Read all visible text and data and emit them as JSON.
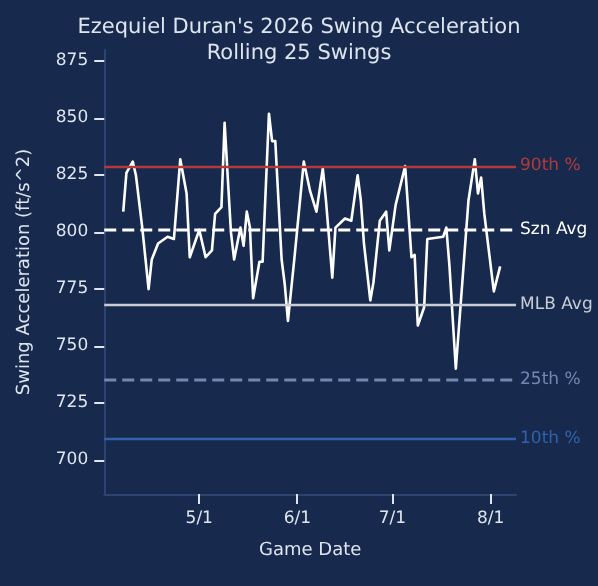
{
  "chart_data": {
    "type": "line",
    "title": "Ezequiel Duran's 2026 Swing Acceleration",
    "subtitle": "Rolling 25 Swings",
    "xlabel": "Game Date",
    "ylabel": "Swing Acceleration (ft/s^2)",
    "x": [
      "2026-04-07",
      "2026-04-08",
      "2026-04-10",
      "2026-04-11",
      "2026-04-13",
      "2026-04-15",
      "2026-04-16",
      "2026-04-18",
      "2026-04-21",
      "2026-04-23",
      "2026-04-25",
      "2026-04-27",
      "2026-04-28",
      "2026-04-30",
      "2026-05-01",
      "2026-05-03",
      "2026-05-05",
      "2026-05-06",
      "2026-05-08",
      "2026-05-09",
      "2026-05-11",
      "2026-05-12",
      "2026-05-14",
      "2026-05-15",
      "2026-05-16",
      "2026-05-17",
      "2026-05-18",
      "2026-05-20",
      "2026-05-21",
      "2026-05-23",
      "2026-05-24",
      "2026-05-25",
      "2026-05-27",
      "2026-05-28",
      "2026-05-29",
      "2026-05-31",
      "2026-06-03",
      "2026-06-05",
      "2026-06-07",
      "2026-06-09",
      "2026-06-10",
      "2026-06-12",
      "2026-06-13",
      "2026-06-16",
      "2026-06-18",
      "2026-06-20",
      "2026-06-21",
      "2026-06-22",
      "2026-06-24",
      "2026-06-25",
      "2026-06-27",
      "2026-06-29",
      "2026-06-30",
      "2026-07-02",
      "2026-07-05",
      "2026-07-07",
      "2026-07-08",
      "2026-07-09",
      "2026-07-11",
      "2026-07-12",
      "2026-07-17",
      "2026-07-18",
      "2026-07-19",
      "2026-07-21",
      "2026-07-23",
      "2026-07-25",
      "2026-07-27",
      "2026-07-28",
      "2026-07-29",
      "2026-07-30",
      "2026-08-02",
      "2026-08-04"
    ],
    "series": [
      {
        "color": "#ffffff",
        "values": [
          809,
          826,
          831,
          825,
          802,
          775,
          788,
          795,
          798,
          797,
          832,
          817,
          789,
          797,
          801,
          789,
          792,
          808,
          811,
          848,
          800,
          788,
          802,
          794,
          809,
          802,
          771,
          787,
          787,
          852,
          840,
          840,
          788,
          777,
          761,
          788,
          831,
          818,
          809,
          828,
          814,
          780,
          802,
          806,
          805,
          825,
          814,
          795,
          770,
          778,
          805,
          809,
          792,
          812,
          829,
          789,
          790,
          759,
          767,
          797,
          798,
          802,
          785,
          740,
          777,
          814,
          832,
          817,
          824,
          808,
          774,
          785
        ]
      }
    ],
    "xlim": [
      "2026-04-01",
      "2026-08-09"
    ],
    "xticks": [
      {
        "value": "2026-05-01",
        "label": "5/1"
      },
      {
        "value": "2026-06-01",
        "label": "6/1"
      },
      {
        "value": "2026-07-01",
        "label": "7/1"
      },
      {
        "value": "2026-08-01",
        "label": "8/1"
      }
    ],
    "ylim": [
      685,
      880
    ],
    "yticks": [
      700,
      725,
      750,
      775,
      800,
      825,
      850,
      875
    ],
    "ref_lines": [
      {
        "axis": "y",
        "value": 829,
        "label": "90th %",
        "color": "#b23a3a",
        "line_style": "solid"
      },
      {
        "axis": "y",
        "value": 801,
        "label": "Szn Avg",
        "color": "#ffffff",
        "line_style": "dashed"
      },
      {
        "axis": "y",
        "value": 768,
        "label": "MLB Avg",
        "color": "#c8ccd4",
        "line_style": "solid"
      },
      {
        "axis": "y",
        "value": 735,
        "label": "25th %",
        "color": "#7388b0",
        "line_style": "dashed"
      },
      {
        "axis": "y",
        "value": 709,
        "label": "10th %",
        "color": "#2f62a8",
        "line_style": "solid"
      }
    ],
    "grid": false,
    "marker": "none",
    "line_style": "solid"
  }
}
